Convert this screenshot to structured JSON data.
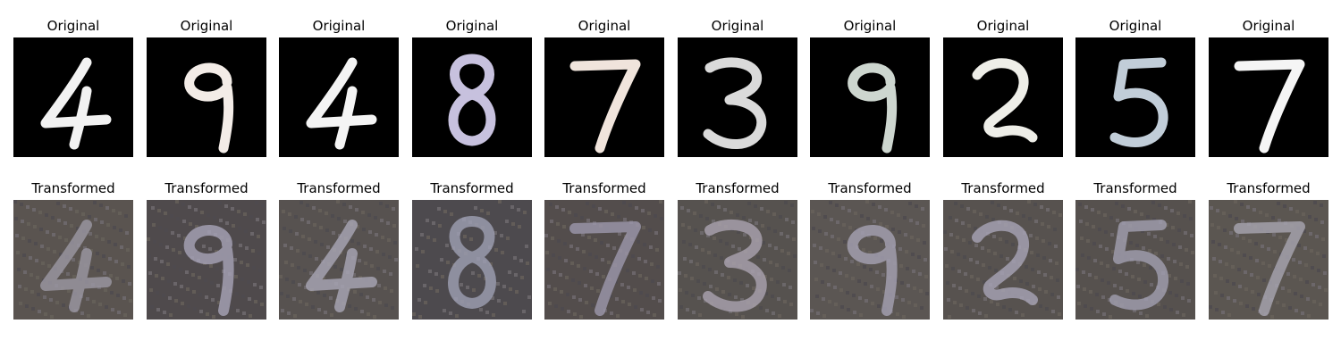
{
  "rows": [
    {
      "title": "Original",
      "panels": [
        {
          "digit": "4",
          "ink": "#f2f2f2",
          "bg": "#000000"
        },
        {
          "digit": "9",
          "ink": "#f3ece7",
          "bg": "#000000"
        },
        {
          "digit": "4",
          "ink": "#f4f4f4",
          "bg": "#000000"
        },
        {
          "digit": "8",
          "ink": "#c7c1de",
          "bg": "#000000"
        },
        {
          "digit": "7",
          "ink": "#f0e4dc",
          "bg": "#000000"
        },
        {
          "digit": "3",
          "ink": "#dadada",
          "bg": "#000000"
        },
        {
          "digit": "9",
          "ink": "#cdd6cf",
          "bg": "#000000"
        },
        {
          "digit": "2",
          "ink": "#eeeee8",
          "bg": "#000000"
        },
        {
          "digit": "5",
          "ink": "#c1cdd8",
          "bg": "#000000"
        },
        {
          "digit": "7",
          "ink": "#f5f5f5",
          "bg": "#000000"
        }
      ]
    },
    {
      "title": "Transformed",
      "panels": [
        {
          "digit": "4",
          "ink": "#9c98a4",
          "bg": "#5a5450"
        },
        {
          "digit": "9",
          "ink": "#a8a4b8",
          "bg": "#4f4a4c"
        },
        {
          "digit": "4",
          "ink": "#aaa8b6",
          "bg": "#575250"
        },
        {
          "digit": "8",
          "ink": "#9fa0b4",
          "bg": "#4d4a4e"
        },
        {
          "digit": "7",
          "ink": "#9e98ac",
          "bg": "#534d4c"
        },
        {
          "digit": "3",
          "ink": "#aba4b0",
          "bg": "#56524f"
        },
        {
          "digit": "9",
          "ink": "#a6a2b4",
          "bg": "#5b5653"
        },
        {
          "digit": "2",
          "ink": "#a9a5b6",
          "bg": "#57524f"
        },
        {
          "digit": "5",
          "ink": "#a2a0b2",
          "bg": "#56514e"
        },
        {
          "digit": "7",
          "ink": "#a9a6b2",
          "bg": "#5b5651"
        }
      ]
    }
  ]
}
